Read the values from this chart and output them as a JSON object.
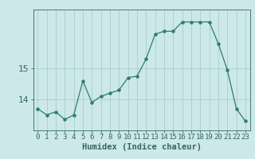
{
  "x": [
    0,
    1,
    2,
    3,
    4,
    5,
    6,
    7,
    8,
    9,
    10,
    11,
    12,
    13,
    14,
    15,
    16,
    17,
    18,
    19,
    20,
    21,
    22,
    23
  ],
  "y": [
    13.7,
    13.5,
    13.6,
    13.35,
    13.5,
    14.6,
    13.9,
    14.1,
    14.2,
    14.3,
    14.7,
    14.75,
    15.3,
    16.1,
    16.2,
    16.2,
    16.5,
    16.5,
    16.5,
    16.5,
    15.8,
    14.95,
    13.7,
    13.3
  ],
  "line_color": "#2e7d6e",
  "bg_color": "#cce8e8",
  "grid_color": "#aacece",
  "xlabel": "Humidex (Indice chaleur)",
  "yticks": [
    14,
    15
  ],
  "ylim": [
    13.0,
    16.9
  ],
  "xlim": [
    -0.5,
    23.5
  ],
  "tick_color": "#336666",
  "font_size": 6.5,
  "xlabel_fontsize": 7.5,
  "marker_size": 2.2,
  "line_width": 0.9
}
